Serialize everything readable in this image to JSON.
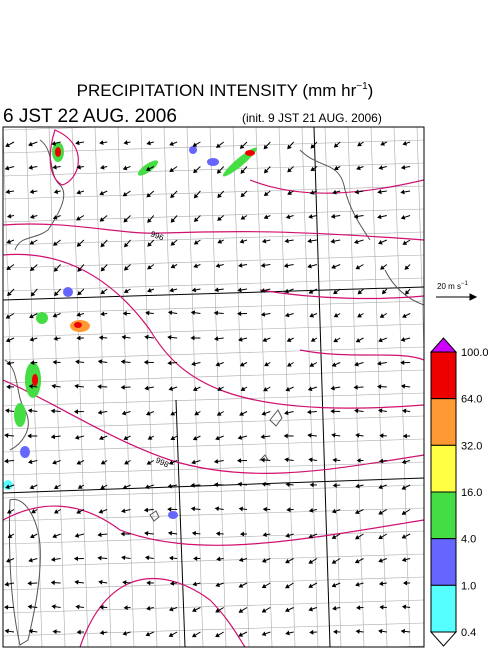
{
  "title": {
    "text": "PRECIPITATION INTENSITY (mm hr",
    "exponent": "−1",
    "close": ")"
  },
  "valid_time": "6 JST 22 AUG. 2006",
  "init_time": "(init. 9 JST 21 AUG. 2006)",
  "vector_scale": {
    "text": "20 m s",
    "exponent": "−1"
  },
  "contour_labels": [
    "996",
    "998"
  ],
  "colorbar": {
    "labels": [
      "100.0",
      "64.0",
      "32.0",
      "16.0",
      "4.0",
      "1.0",
      "0.4"
    ],
    "colors": [
      "#cc00ff",
      "#ee0000",
      "#ff9933",
      "#ffff44",
      "#44dd44",
      "#6666ff",
      "#55ffff",
      "#ffffff"
    ]
  }
}
